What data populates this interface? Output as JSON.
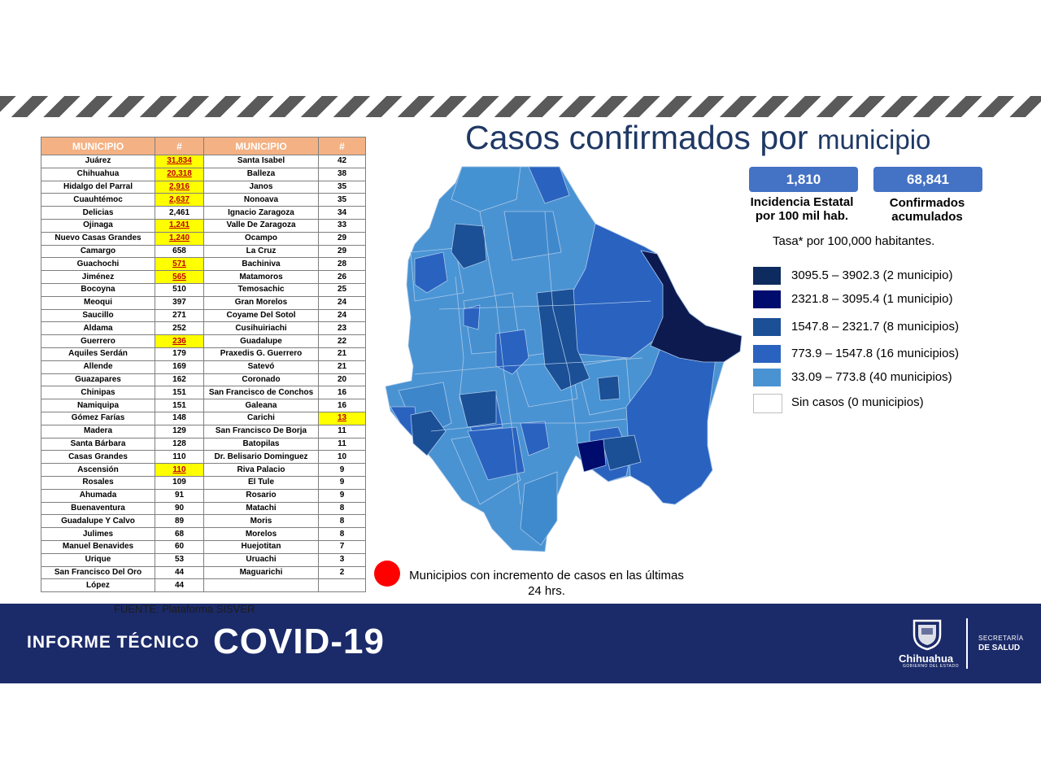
{
  "title": {
    "main": "Casos confirmados por",
    "small": "municipio"
  },
  "table": {
    "headers": [
      "MUNICIPIO",
      "#",
      "MUNICIPIO",
      "#"
    ],
    "left": [
      {
        "name": "Juárez",
        "value": "31,834",
        "highlight": true
      },
      {
        "name": "Chihuahua",
        "value": "20,318",
        "highlight": true
      },
      {
        "name": "Hidalgo del Parral",
        "value": "2,916",
        "highlight": true
      },
      {
        "name": "Cuauhtémoc",
        "value": "2,637",
        "highlight": true
      },
      {
        "name": "Delicias",
        "value": "2,461",
        "highlight": false
      },
      {
        "name": "Ojinaga",
        "value": "1,241",
        "highlight": true
      },
      {
        "name": "Nuevo Casas Grandes",
        "value": "1,240",
        "highlight": true
      },
      {
        "name": "Camargo",
        "value": "658",
        "highlight": false
      },
      {
        "name": "Guachochi",
        "value": "571",
        "highlight": true
      },
      {
        "name": "Jiménez",
        "value": "565",
        "highlight": true
      },
      {
        "name": "Bocoyna",
        "value": "510",
        "highlight": false
      },
      {
        "name": "Meoqui",
        "value": "397",
        "highlight": false
      },
      {
        "name": "Saucillo",
        "value": "271",
        "highlight": false
      },
      {
        "name": "Aldama",
        "value": "252",
        "highlight": false
      },
      {
        "name": "Guerrero",
        "value": "236",
        "highlight": true
      },
      {
        "name": "Aquiles Serdán",
        "value": "179",
        "highlight": false
      },
      {
        "name": "Allende",
        "value": "169",
        "highlight": false
      },
      {
        "name": "Guazapares",
        "value": "162",
        "highlight": false
      },
      {
        "name": "Chinipas",
        "value": "151",
        "highlight": false
      },
      {
        "name": "Namiquipa",
        "value": "151",
        "highlight": false
      },
      {
        "name": "Gómez Farías",
        "value": "148",
        "highlight": false
      },
      {
        "name": "Madera",
        "value": "129",
        "highlight": false
      },
      {
        "name": "Santa Bárbara",
        "value": "128",
        "highlight": false
      },
      {
        "name": "Casas Grandes",
        "value": "110",
        "highlight": false
      },
      {
        "name": "Ascensión",
        "value": "110",
        "highlight": true
      },
      {
        "name": "Rosales",
        "value": "109",
        "highlight": false
      },
      {
        "name": "Ahumada",
        "value": "91",
        "highlight": false
      },
      {
        "name": "Buenaventura",
        "value": "90",
        "highlight": false
      },
      {
        "name": "Guadalupe Y Calvo",
        "value": "89",
        "highlight": false
      },
      {
        "name": "Julimes",
        "value": "68",
        "highlight": false
      },
      {
        "name": "Manuel Benavides",
        "value": "60",
        "highlight": false
      },
      {
        "name": "Urique",
        "value": "53",
        "highlight": false
      },
      {
        "name": "San Francisco Del Oro",
        "value": "44",
        "highlight": false
      },
      {
        "name": "López",
        "value": "44",
        "highlight": false
      }
    ],
    "right": [
      {
        "name": "Santa Isabel",
        "value": "42",
        "highlight": false
      },
      {
        "name": "Balleza",
        "value": "38",
        "highlight": false
      },
      {
        "name": "Janos",
        "value": "35",
        "highlight": false
      },
      {
        "name": "Nonoava",
        "value": "35",
        "highlight": false
      },
      {
        "name": "Ignacio Zaragoza",
        "value": "34",
        "highlight": false
      },
      {
        "name": "Valle De Zaragoza",
        "value": "33",
        "highlight": false
      },
      {
        "name": "Ocampo",
        "value": "29",
        "highlight": false
      },
      {
        "name": "La Cruz",
        "value": "29",
        "highlight": false
      },
      {
        "name": "Bachiniva",
        "value": "28",
        "highlight": false
      },
      {
        "name": "Matamoros",
        "value": "26",
        "highlight": false
      },
      {
        "name": "Temosachic",
        "value": "25",
        "highlight": false
      },
      {
        "name": "Gran Morelos",
        "value": "24",
        "highlight": false
      },
      {
        "name": "Coyame Del Sotol",
        "value": "24",
        "highlight": false
      },
      {
        "name": "Cusihuiriachi",
        "value": "23",
        "highlight": false
      },
      {
        "name": "Guadalupe",
        "value": "22",
        "highlight": false
      },
      {
        "name": "Praxedis G. Guerrero",
        "value": "21",
        "highlight": false
      },
      {
        "name": "Satevó",
        "value": "21",
        "highlight": false
      },
      {
        "name": "Coronado",
        "value": "20",
        "highlight": false
      },
      {
        "name": "San Francisco de Conchos",
        "value": "16",
        "highlight": false
      },
      {
        "name": "Galeana",
        "value": "16",
        "highlight": false
      },
      {
        "name": "Carichi",
        "value": "13",
        "highlight": true
      },
      {
        "name": "San Francisco De Borja",
        "value": "11",
        "highlight": false
      },
      {
        "name": "Batopilas",
        "value": "11",
        "highlight": false
      },
      {
        "name": "Dr. Belisario Dominguez",
        "value": "10",
        "highlight": false
      },
      {
        "name": "Riva Palacio",
        "value": "9",
        "highlight": false
      },
      {
        "name": "El Tule",
        "value": "9",
        "highlight": false
      },
      {
        "name": "Rosario",
        "value": "9",
        "highlight": false
      },
      {
        "name": "Matachi",
        "value": "8",
        "highlight": false
      },
      {
        "name": "Moris",
        "value": "8",
        "highlight": false
      },
      {
        "name": "Morelos",
        "value": "8",
        "highlight": false
      },
      {
        "name": "Huejotitan",
        "value": "7",
        "highlight": false
      },
      {
        "name": "Uruachi",
        "value": "3",
        "highlight": false
      },
      {
        "name": "Maguarichi",
        "value": "2",
        "highlight": false
      },
      {
        "name": "",
        "value": "",
        "highlight": false
      }
    ]
  },
  "source": "FUENTE: Plataforma SISVER",
  "stats": {
    "incidence_value": "1,810",
    "incidence_label_1": "Incidencia Estatal",
    "incidence_label_2": "por 100 mil hab.",
    "confirmed_value": "68,841",
    "confirmed_label_1": "Confirmados",
    "confirmed_label_2": "acumulados"
  },
  "tasa": "Tasa* por 100,000 habitantes.",
  "legend": [
    {
      "text": "3095.5 – 3902.3 (2 municipio)",
      "color": "#0d2b5e"
    },
    {
      "text": "2321.8  – 3095.4 (1 municipio)",
      "color": "#000b6e"
    },
    {
      "text": "1547.8 – 2321.7 (8 municipios)",
      "color": "#1b4f96"
    },
    {
      "text": "773.9 – 1547.8 (16 municipios)",
      "color": "#2a62c0"
    },
    {
      "text": " 33.09 – 773.8 (40 municipios)",
      "color": "#4a93d3"
    },
    {
      "text": "Sin casos (0 municipios)",
      "color": "#ffffff"
    }
  ],
  "note": {
    "line1": "Municipios con incremento de casos en las últimas",
    "line2": "24 hrs."
  },
  "footer": {
    "label": "INFORME TÉCNICO",
    "covid": "COVID-19",
    "logo_city": "Chihuahua",
    "logo_sub": "GOBIERNO DEL ESTADO",
    "secretaria": "SECRETARÍA",
    "salud": "DE SALUD"
  }
}
